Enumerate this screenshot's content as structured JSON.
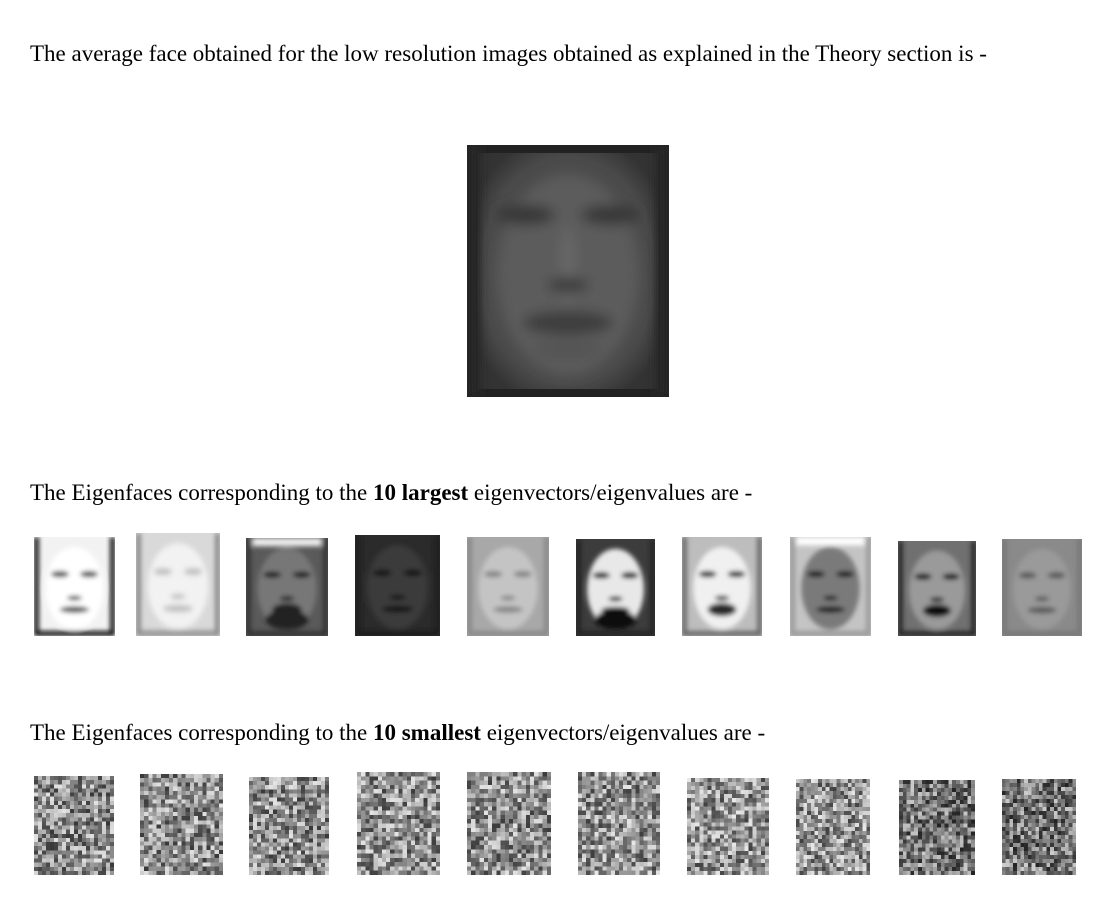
{
  "intro": {
    "text": "The average face obtained for the low resolution images obtained as explained in the Theory section is -"
  },
  "largest": {
    "prefix": "The Eigenfaces corresponding to the ",
    "bold": "10 largest",
    "suffix": " eigenvectors/eigenvalues are -",
    "count": 10
  },
  "smallest": {
    "prefix": "The Eigenfaces corresponding to the ",
    "bold": "10 smallest",
    "suffix": " eigenvectors/eigenvalues are -",
    "count": 10
  }
}
